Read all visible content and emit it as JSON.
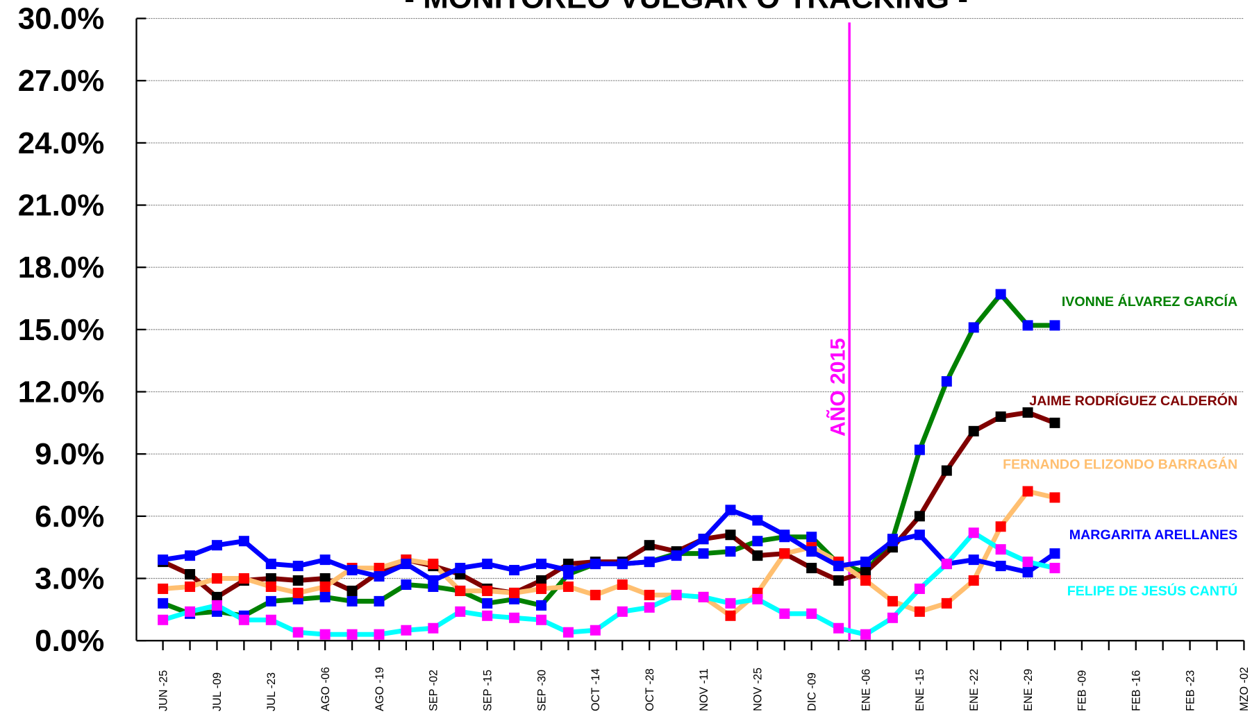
{
  "chart_data": {
    "type": "line",
    "title": "- MONITOREO VULGAR O TRACKING -",
    "annotation": "AÑO 2015",
    "categories": [
      "JUN -25",
      null,
      "JUL -09",
      null,
      "JUL -23",
      null,
      "AGO -06",
      null,
      "AGO -19",
      null,
      "SEP -02",
      null,
      "SEP -15",
      null,
      "SEP -30",
      null,
      "OCT -14",
      null,
      "OCT -28",
      null,
      "NOV -11",
      null,
      "NOV -25",
      null,
      "DIC -09",
      null,
      "ENE -06",
      null,
      "ENE -15",
      null,
      "ENE -22",
      null,
      "ENE -29",
      null,
      "FEB -09",
      null,
      "FEB -16",
      null,
      "FEB -23",
      null,
      "MZO -02"
    ],
    "ylim": [
      0,
      30
    ],
    "yticks": [
      {
        "value": 0,
        "label": "0.0%"
      },
      {
        "value": 3,
        "label": "3.0%"
      },
      {
        "value": 6,
        "label": "6.0%"
      },
      {
        "value": 9,
        "label": "9.0%"
      },
      {
        "value": 12,
        "label": "12.0%"
      },
      {
        "value": 15,
        "label": "15.0%"
      },
      {
        "value": 18,
        "label": "18.0%"
      },
      {
        "value": 21,
        "label": "21.0%"
      },
      {
        "value": 24,
        "label": "24.0%"
      },
      {
        "value": 27,
        "label": "27.0%"
      },
      {
        "value": 30,
        "label": "30.0%"
      }
    ],
    "grid": true,
    "annotation_color": "#ff00ff",
    "series": [
      {
        "name": "IVONNE ÁLVAREZ GARCÍA",
        "color": "#008000",
        "marker_color": "#0000ff",
        "values": [
          1.8,
          1.3,
          1.4,
          1.2,
          1.9,
          2.0,
          2.1,
          1.9,
          1.9,
          2.7,
          2.6,
          2.4,
          1.8,
          2.0,
          1.7,
          3.2,
          3.7,
          3.7,
          3.8,
          4.2,
          4.2,
          4.3,
          4.8,
          5.0,
          5.0,
          3.7,
          3.3,
          4.9,
          9.2,
          12.5,
          15.1,
          16.7,
          15.2,
          15.2,
          null,
          null,
          null,
          null,
          null,
          null,
          null
        ]
      },
      {
        "name": "JAIME RODRÍGUEZ CALDERÓN",
        "color": "#800000",
        "marker_color": "#000000",
        "values": [
          3.8,
          3.2,
          2.1,
          2.9,
          3.0,
          2.9,
          3.0,
          2.4,
          3.3,
          3.9,
          3.6,
          3.2,
          2.5,
          2.3,
          2.9,
          3.7,
          3.8,
          3.8,
          4.6,
          4.3,
          4.9,
          5.1,
          4.1,
          4.2,
          3.5,
          2.9,
          3.3,
          4.5,
          6.0,
          8.2,
          10.1,
          10.8,
          11.0,
          10.5,
          null,
          null,
          null,
          null,
          null,
          null,
          null
        ]
      },
      {
        "name": "FERNANDO ELIZONDO BARRAGÁN",
        "color": "#ffbf70",
        "marker_color": "#ff0000",
        "values": [
          2.5,
          2.6,
          3.0,
          3.0,
          2.6,
          2.3,
          2.6,
          3.5,
          3.5,
          3.9,
          3.7,
          2.4,
          2.4,
          2.3,
          2.5,
          2.6,
          2.2,
          2.7,
          2.2,
          2.2,
          2.1,
          1.2,
          2.3,
          4.2,
          4.5,
          3.8,
          2.9,
          1.9,
          1.4,
          1.8,
          2.9,
          5.5,
          7.2,
          6.9,
          null,
          null,
          null,
          null,
          null,
          null,
          null
        ]
      },
      {
        "name": "MARGARITA ARELLANES",
        "color": "#0000ff",
        "marker_color": "#0000ff",
        "values": [
          3.9,
          4.1,
          4.6,
          4.8,
          3.7,
          3.6,
          3.9,
          3.4,
          3.1,
          3.7,
          2.9,
          3.5,
          3.7,
          3.4,
          3.7,
          3.4,
          3.7,
          3.7,
          3.8,
          4.1,
          4.9,
          6.3,
          5.8,
          5.1,
          4.3,
          3.6,
          3.8,
          4.8,
          5.1,
          3.7,
          3.9,
          3.6,
          3.3,
          4.2,
          null,
          null,
          null,
          null,
          null,
          null,
          null
        ]
      },
      {
        "name": "FELIPE DE JESÚS CANTÚ",
        "color": "#00ffff",
        "marker_color": "#ff00ff",
        "values": [
          1.0,
          1.4,
          1.7,
          1.0,
          1.0,
          0.4,
          0.3,
          0.3,
          0.3,
          0.5,
          0.6,
          1.4,
          1.2,
          1.1,
          1.0,
          0.4,
          0.5,
          1.4,
          1.6,
          2.2,
          2.1,
          1.8,
          2.0,
          1.3,
          1.3,
          0.6,
          0.3,
          1.1,
          2.5,
          3.7,
          5.2,
          4.4,
          3.8,
          3.5,
          null,
          null,
          null,
          null,
          null,
          null,
          null
        ]
      }
    ]
  }
}
